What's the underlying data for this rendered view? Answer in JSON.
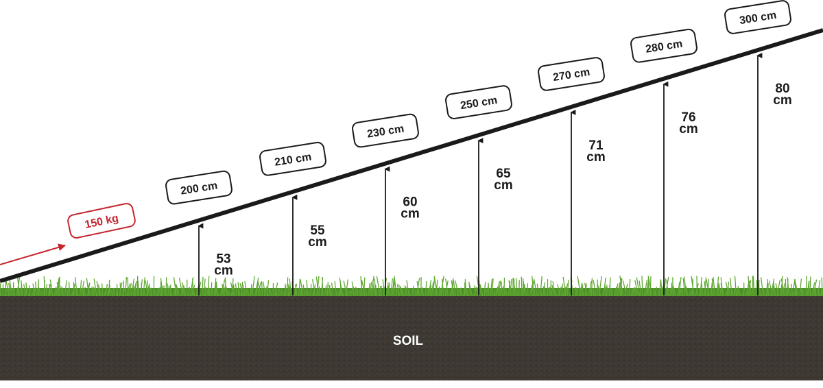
{
  "load": "150 kg",
  "ramps": [
    {
      "length": "200 cm",
      "height": "53",
      "unit": "cm"
    },
    {
      "length": "210 cm",
      "height": "55",
      "unit": "cm"
    },
    {
      "length": "230 cm",
      "height": "60",
      "unit": "cm"
    },
    {
      "length": "250 cm",
      "height": "65",
      "unit": "cm"
    },
    {
      "length": "270 cm",
      "height": "71",
      "unit": "cm"
    },
    {
      "length": "280 cm",
      "height": "76",
      "unit": "cm"
    },
    {
      "length": "300 cm",
      "height": "80",
      "unit": "cm"
    }
  ],
  "ground": "SOIL"
}
